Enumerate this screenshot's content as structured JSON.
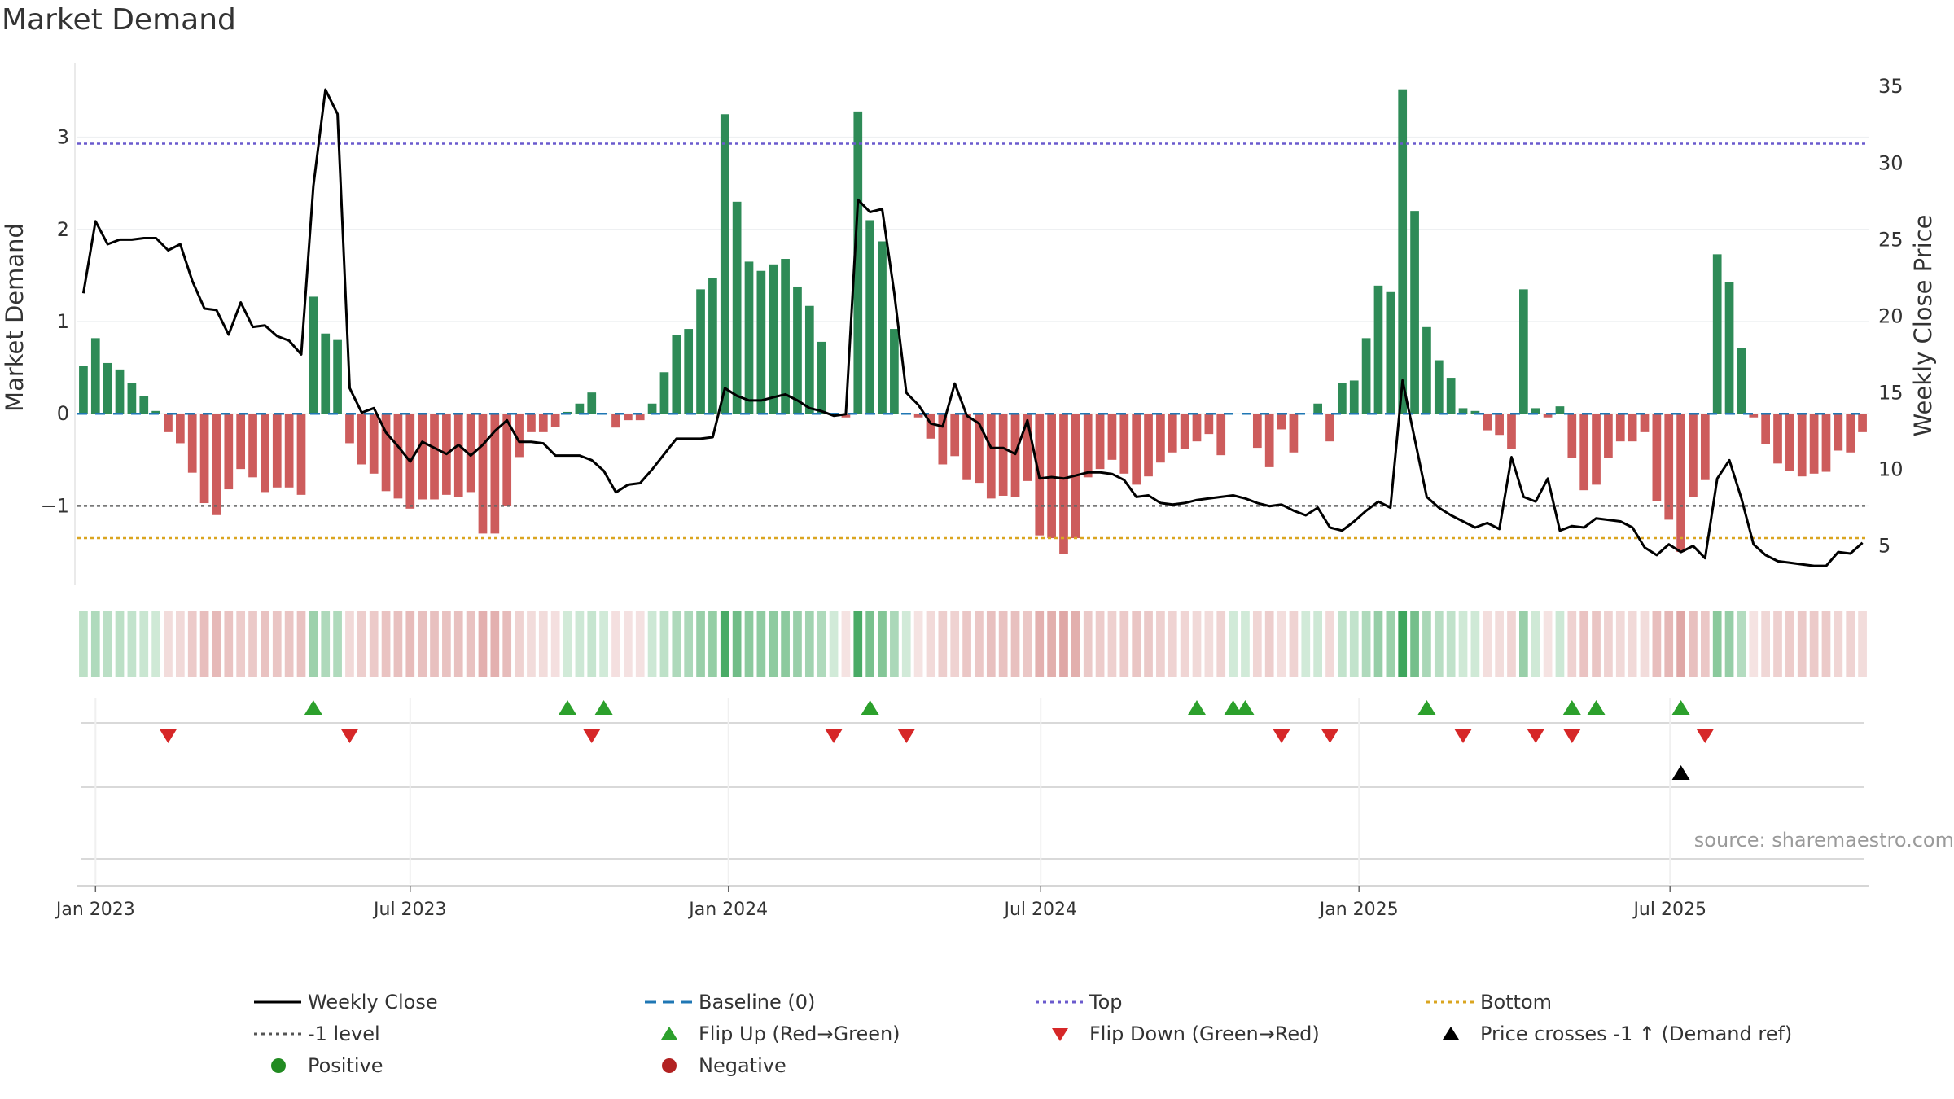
{
  "title": "Market Demand",
  "source": "source: sharemaestro.com",
  "chart_data": {
    "type": "bar",
    "title": "Market Demand",
    "ylabel": "Market Demand",
    "y2label": "Weekly Close Price",
    "ylim": [
      -1.8,
      3.8
    ],
    "y2lim": [
      2.8,
      36.5
    ],
    "yticks": [
      3,
      2,
      1,
      0,
      -1
    ],
    "ytick_labels": [
      "3",
      "2",
      "1",
      "0",
      "−1"
    ],
    "y2ticks": [
      35,
      30,
      25,
      20,
      15,
      10,
      5
    ],
    "reference_lines": {
      "top": 2.93,
      "minus_one": -1.0,
      "bottom": -1.35
    },
    "x_start": "2022-12-25",
    "x_ticks": [
      {
        "label": "Jan 2023",
        "week": 1
      },
      {
        "label": "Jul 2023",
        "week": 27
      },
      {
        "label": "Jan 2024",
        "week": 53.3
      },
      {
        "label": "Jul 2024",
        "week": 79.1
      },
      {
        "label": "Jan 2025",
        "week": 105.4
      },
      {
        "label": "Jul 2025",
        "week": 131.1
      }
    ],
    "demand": [
      0.52,
      0.82,
      0.55,
      0.48,
      0.33,
      0.19,
      0.03,
      -0.2,
      -0.32,
      -0.64,
      -0.97,
      -1.1,
      -0.82,
      -0.6,
      -0.69,
      -0.85,
      -0.8,
      -0.8,
      -0.88,
      1.27,
      0.87,
      0.8,
      -0.32,
      -0.55,
      -0.65,
      -0.84,
      -0.92,
      -1.03,
      -0.93,
      -0.93,
      -0.88,
      -0.9,
      -0.85,
      -1.3,
      -1.3,
      -1.0,
      -0.47,
      -0.2,
      -0.2,
      -0.14,
      0.02,
      0.11,
      0.23,
      0.0,
      -0.15,
      -0.07,
      -0.07,
      0.11,
      0.45,
      0.85,
      0.92,
      1.35,
      1.47,
      3.25,
      2.3,
      1.65,
      1.55,
      1.62,
      1.68,
      1.38,
      1.17,
      0.78,
      0.0,
      -0.04,
      3.28,
      2.1,
      1.87,
      0.92,
      0.01,
      -0.04,
      -0.27,
      -0.55,
      -0.46,
      -0.72,
      -0.75,
      -0.92,
      -0.89,
      -0.9,
      -0.73,
      -1.32,
      -1.35,
      -1.52,
      -1.35,
      -0.69,
      -0.6,
      -0.5,
      -0.65,
      -0.77,
      -0.68,
      -0.53,
      -0.42,
      -0.38,
      -0.3,
      -0.22,
      -0.45,
      0.0,
      0.0,
      -0.37,
      -0.58,
      -0.17,
      -0.42,
      0.0,
      0.11,
      -0.3,
      0.33,
      0.36,
      0.82,
      1.39,
      1.32,
      3.52,
      2.2,
      0.94,
      0.58,
      0.39,
      0.06,
      0.03,
      -0.18,
      -0.23,
      -0.38,
      1.35,
      0.06,
      -0.04,
      0.08,
      -0.48,
      -0.83,
      -0.77,
      -0.48,
      -0.3,
      -0.3,
      -0.2,
      -0.95,
      -1.15,
      -1.5,
      -0.9,
      -0.72,
      1.73,
      1.43,
      0.71,
      -0.04,
      -0.33,
      -0.54,
      -0.62,
      -0.68,
      -0.65,
      -0.63,
      -0.4,
      -0.42,
      -0.2
    ],
    "weekly_close": [
      21.5,
      26.2,
      24.7,
      25.0,
      25.0,
      25.1,
      25.1,
      24.3,
      24.7,
      22.3,
      20.5,
      20.4,
      18.8,
      20.9,
      19.3,
      19.4,
      18.7,
      18.4,
      17.5,
      28.5,
      34.8,
      33.2,
      15.3,
      13.7,
      14.0,
      12.4,
      11.5,
      10.5,
      11.8,
      11.4,
      11.0,
      11.6,
      10.9,
      11.6,
      12.5,
      13.2,
      11.8,
      11.8,
      11.7,
      10.9,
      10.9,
      10.9,
      10.6,
      9.9,
      8.5,
      9.0,
      9.1,
      10.0,
      11.0,
      12.0,
      12.0,
      12.0,
      12.1,
      15.3,
      14.8,
      14.5,
      14.5,
      14.7,
      14.9,
      14.5,
      14.0,
      13.8,
      13.5,
      13.6,
      27.6,
      26.8,
      27.0,
      21.5,
      15.0,
      14.2,
      13.0,
      12.8,
      15.6,
      13.5,
      13.0,
      11.4,
      11.4,
      11.0,
      13.2,
      9.4,
      9.5,
      9.4,
      9.6,
      9.8,
      9.8,
      9.7,
      9.3,
      8.2,
      8.3,
      7.8,
      7.7,
      7.8,
      8.0,
      8.1,
      8.2,
      8.3,
      8.1,
      7.8,
      7.6,
      7.7,
      7.3,
      7.0,
      7.5,
      6.2,
      6.0,
      6.6,
      7.3,
      7.9,
      7.5,
      15.8,
      12.0,
      8.2,
      7.5,
      7.0,
      6.6,
      6.2,
      6.5,
      6.1,
      10.8,
      8.2,
      7.9,
      9.4,
      6.0,
      6.3,
      6.2,
      6.8,
      6.7,
      6.6,
      6.2,
      4.9,
      4.4,
      5.1,
      4.6,
      5.0,
      4.2,
      9.4,
      10.6,
      8.1,
      5.1,
      4.4,
      4.0,
      3.9,
      3.8,
      3.7,
      3.7,
      4.6,
      4.5,
      5.2
    ],
    "flip_up_weeks": [
      19,
      40,
      43,
      65,
      92,
      95,
      96,
      111,
      123,
      125,
      132
    ],
    "flip_down_weeks": [
      7,
      22,
      42,
      62,
      68,
      99,
      103,
      114,
      120,
      123,
      134
    ],
    "price_cross_weeks": [
      132
    ],
    "legend": [
      {
        "label": "Weekly Close",
        "marker": "solid-line",
        "color": "#000000"
      },
      {
        "label": "Baseline (0)",
        "marker": "dashed-line",
        "color": "#1f77b4"
      },
      {
        "label": "Top",
        "marker": "dotted-line",
        "color": "#6a5acd"
      },
      {
        "label": "Bottom",
        "marker": "dotted-line",
        "color": "#daa520"
      },
      {
        "label": "-1 level",
        "marker": "dotted-line",
        "color": "#555555"
      },
      {
        "label": "Flip Up (Red→Green)",
        "marker": "triangle-up",
        "color": "#2ca02c"
      },
      {
        "label": "Flip Down (Green→Red)",
        "marker": "triangle-down",
        "color": "#d62728"
      },
      {
        "label": "Price crosses -1 ↑ (Demand ref)",
        "marker": "triangle-up",
        "color": "#000000"
      },
      {
        "label": "Positive",
        "marker": "circle",
        "color": "#228b22"
      },
      {
        "label": "Negative",
        "marker": "circle",
        "color": "#b22222"
      }
    ],
    "colors": {
      "positive_bar": "#2e8b57",
      "negative_bar": "#cd5c5c",
      "price_line": "#000000",
      "baseline": "#1f77b4",
      "top_line": "#6a5acd",
      "minus_one_line": "#666666",
      "bottom_line": "#daa520",
      "flip_up": "#2ca02c",
      "flip_down": "#d62728",
      "price_cross": "#000000"
    }
  }
}
